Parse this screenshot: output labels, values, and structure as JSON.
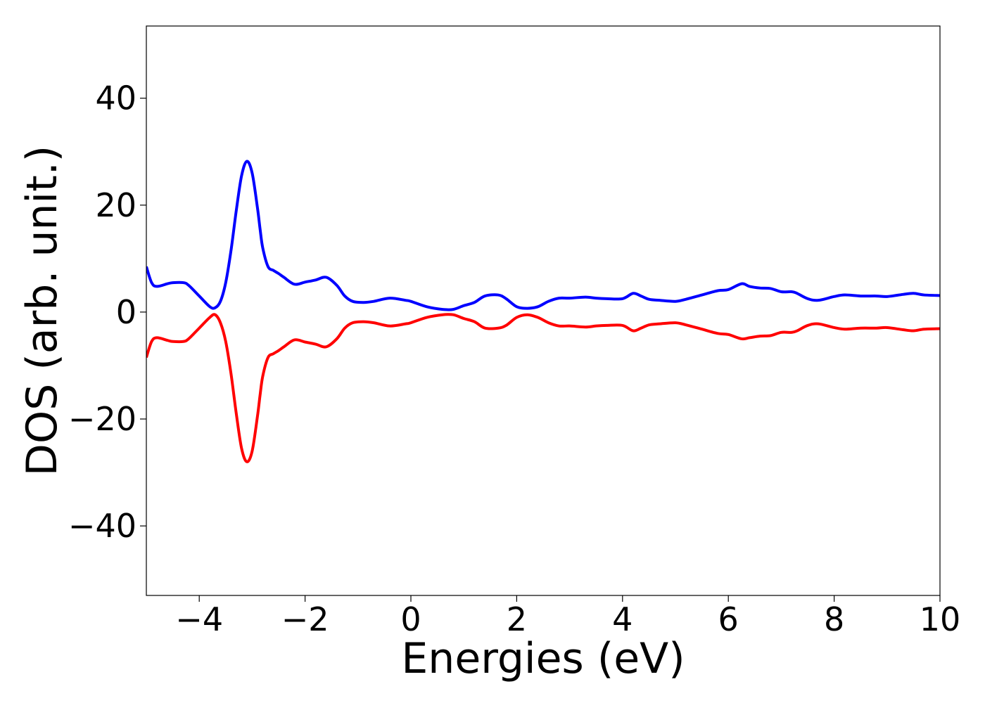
{
  "chart_data": {
    "type": "line",
    "title": "",
    "xlabel": "Energies (eV)",
    "ylabel": "DOS (arb. unit.)",
    "xlim": [
      -5,
      10
    ],
    "ylim": [
      -53,
      53.5
    ],
    "xticks": [
      -4,
      -2,
      0,
      2,
      4,
      6,
      8,
      10
    ],
    "xtick_labels": [
      "−4",
      "−2",
      "0",
      "2",
      "4",
      "6",
      "8",
      "10"
    ],
    "yticks": [
      -40,
      -20,
      0,
      20,
      40
    ],
    "ytick_labels": [
      "−40",
      "−20",
      "0",
      "20",
      "40"
    ],
    "grid": false,
    "legend": "none",
    "series": [
      {
        "color": "#0000ff",
        "x": [
          -5.0,
          -4.9,
          -4.8,
          -4.6,
          -4.5,
          -4.3,
          -4.2,
          -4.0,
          -3.8,
          -3.7,
          -3.6,
          -3.5,
          -3.4,
          -3.3,
          -3.2,
          -3.1,
          -3.0,
          -2.9,
          -2.85,
          -2.8,
          -2.7,
          -2.6,
          -2.5,
          -2.4,
          -2.2,
          -2.0,
          -1.8,
          -1.6,
          -1.4,
          -1.25,
          -1.1,
          -0.9,
          -0.7,
          -0.4,
          -0.1,
          0.0,
          0.3,
          0.6,
          0.8,
          1.0,
          1.2,
          1.4,
          1.65,
          1.8,
          2.0,
          2.2,
          2.4,
          2.6,
          2.8,
          3.0,
          3.3,
          3.5,
          3.7,
          4.0,
          4.2,
          4.35,
          4.5,
          4.7,
          5.0,
          5.2,
          5.5,
          5.8,
          6.0,
          6.25,
          6.4,
          6.6,
          6.8,
          7.0,
          7.2,
          7.3,
          7.5,
          7.7,
          8.0,
          8.2,
          8.5,
          8.8,
          9.0,
          9.3,
          9.5,
          9.7,
          10.0
        ],
        "y": [
          8.5,
          5.5,
          4.8,
          5.3,
          5.5,
          5.5,
          5.0,
          3.0,
          1.0,
          0.8,
          2.0,
          5.5,
          11.5,
          19.0,
          25.5,
          28.2,
          26.0,
          19.5,
          15.5,
          12.0,
          8.5,
          7.8,
          7.2,
          6.5,
          5.2,
          5.6,
          6.0,
          6.5,
          5.0,
          3.0,
          2.0,
          1.8,
          2.0,
          2.6,
          2.2,
          2.0,
          1.0,
          0.5,
          0.5,
          1.2,
          1.8,
          3.0,
          3.2,
          2.5,
          1.0,
          0.7,
          1.0,
          2.0,
          2.6,
          2.6,
          2.8,
          2.6,
          2.5,
          2.5,
          3.5,
          3.0,
          2.4,
          2.2,
          2.0,
          2.4,
          3.2,
          4.0,
          4.2,
          5.3,
          4.8,
          4.5,
          4.4,
          3.8,
          3.8,
          3.5,
          2.5,
          2.2,
          2.9,
          3.2,
          3.0,
          3.0,
          2.9,
          3.3,
          3.5,
          3.2,
          3.1
        ]
      },
      {
        "color": "#ff0000",
        "x": [
          -5.0,
          -4.9,
          -4.8,
          -4.6,
          -4.5,
          -4.3,
          -4.2,
          -4.0,
          -3.8,
          -3.7,
          -3.6,
          -3.5,
          -3.4,
          -3.3,
          -3.2,
          -3.1,
          -3.0,
          -2.9,
          -2.85,
          -2.8,
          -2.7,
          -2.6,
          -2.5,
          -2.4,
          -2.2,
          -2.0,
          -1.8,
          -1.6,
          -1.4,
          -1.25,
          -1.1,
          -0.9,
          -0.7,
          -0.4,
          -0.1,
          0.0,
          0.3,
          0.6,
          0.8,
          1.0,
          1.2,
          1.4,
          1.65,
          1.8,
          2.0,
          2.2,
          2.4,
          2.6,
          2.8,
          3.0,
          3.3,
          3.5,
          3.7,
          4.0,
          4.2,
          4.35,
          4.5,
          4.7,
          5.0,
          5.2,
          5.5,
          5.8,
          6.0,
          6.25,
          6.4,
          6.6,
          6.8,
          7.0,
          7.2,
          7.3,
          7.5,
          7.7,
          8.0,
          8.2,
          8.5,
          8.8,
          9.0,
          9.3,
          9.5,
          9.7,
          10.0
        ],
        "y": [
          -8.5,
          -5.5,
          -4.8,
          -5.3,
          -5.5,
          -5.5,
          -5.0,
          -3.0,
          -1.0,
          -0.5,
          -2.0,
          -5.5,
          -11.5,
          -19.0,
          -25.5,
          -28.0,
          -26.0,
          -19.5,
          -15.5,
          -12.0,
          -8.5,
          -7.8,
          -7.2,
          -6.5,
          -5.2,
          -5.6,
          -6.0,
          -6.5,
          -5.0,
          -3.0,
          -2.0,
          -1.8,
          -2.0,
          -2.6,
          -2.2,
          -2.0,
          -1.0,
          -0.5,
          -0.5,
          -1.2,
          -1.8,
          -3.0,
          -3.0,
          -2.5,
          -1.0,
          -0.5,
          -1.0,
          -2.0,
          -2.6,
          -2.6,
          -2.8,
          -2.6,
          -2.5,
          -2.5,
          -3.5,
          -3.0,
          -2.4,
          -2.2,
          -2.0,
          -2.4,
          -3.2,
          -4.0,
          -4.2,
          -5.0,
          -4.8,
          -4.5,
          -4.4,
          -3.8,
          -3.8,
          -3.5,
          -2.5,
          -2.2,
          -2.9,
          -3.2,
          -3.0,
          -3.0,
          -2.9,
          -3.3,
          -3.5,
          -3.2,
          -3.1
        ]
      }
    ]
  }
}
